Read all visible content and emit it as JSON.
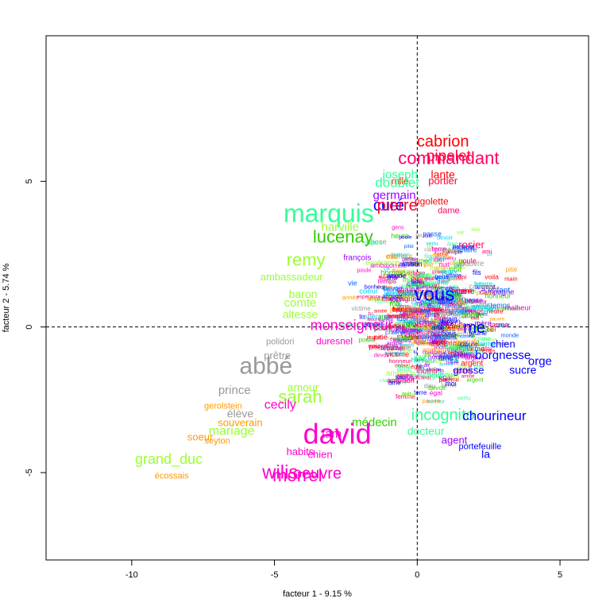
{
  "chart_data": {
    "type": "scatter",
    "title": "",
    "xlabel": "facteur  1  - 9.15 %",
    "ylabel": "facteur  2  - 5.74 %",
    "xlim": [
      -13,
      6
    ],
    "ylim": [
      -8,
      10
    ],
    "x_ticks": [
      -10,
      -5,
      0,
      5
    ],
    "y_ticks": [
      -5,
      0,
      5
    ],
    "reference_lines": {
      "x": 0,
      "y": 0,
      "style": "dashed"
    },
    "points": [
      {
        "label": "cabrion",
        "x": 0.9,
        "y": 6.2,
        "size": 20,
        "color": "#ff0000"
      },
      {
        "label": "pipelet",
        "x": 1.1,
        "y": 5.7,
        "size": 19,
        "color": "#ff0033"
      },
      {
        "label": "commandant",
        "x": 1.1,
        "y": 5.6,
        "size": 22,
        "color": "#ff0066"
      },
      {
        "label": "joseph",
        "x": -0.6,
        "y": 5.1,
        "size": 15,
        "color": "#33ff99"
      },
      {
        "label": "mlle",
        "x": -0.6,
        "y": 4.9,
        "size": 12,
        "color": "#ff3300"
      },
      {
        "label": "lante",
        "x": 0.9,
        "y": 5.1,
        "size": 14,
        "color": "#ff0000"
      },
      {
        "label": "portier",
        "x": 0.9,
        "y": 4.9,
        "size": 13,
        "color": "#ff0033"
      },
      {
        "label": "doublet",
        "x": -0.7,
        "y": 4.8,
        "size": 17,
        "color": "#33ff99"
      },
      {
        "label": "germain",
        "x": -0.8,
        "y": 4.4,
        "size": 15,
        "color": "#9900ff"
      },
      {
        "label": "curé",
        "x": -1.0,
        "y": 4.0,
        "size": 20,
        "color": "#0000ff"
      },
      {
        "label": "pierre",
        "x": -0.7,
        "y": 4.0,
        "size": 20,
        "color": "#ff0033"
      },
      {
        "label": "rigolette",
        "x": 0.5,
        "y": 4.2,
        "size": 12,
        "color": "#ff0000"
      },
      {
        "label": "dame",
        "x": 1.1,
        "y": 3.9,
        "size": 11,
        "color": "#ff0066"
      },
      {
        "label": "marquis",
        "x": -3.1,
        "y": 3.6,
        "size": 32,
        "color": "#33ff99"
      },
      {
        "label": "harville",
        "x": -2.7,
        "y": 3.3,
        "size": 15,
        "color": "#99ff33"
      },
      {
        "label": "lucenay",
        "x": -2.6,
        "y": 2.9,
        "size": 22,
        "color": "#33cc00"
      },
      {
        "label": "rosier",
        "x": 1.9,
        "y": 2.7,
        "size": 13,
        "color": "#ff0066"
      },
      {
        "label": "remy",
        "x": -3.9,
        "y": 2.1,
        "size": 22,
        "color": "#99ff33"
      },
      {
        "label": "françois",
        "x": -2.1,
        "y": 2.3,
        "size": 10,
        "color": "#9900ff"
      },
      {
        "label": "ambassadeur",
        "x": -4.4,
        "y": 1.6,
        "size": 13,
        "color": "#99ff33"
      },
      {
        "label": "baron",
        "x": -4.0,
        "y": 1.0,
        "size": 14,
        "color": "#99ff33"
      },
      {
        "label": "comte",
        "x": -4.1,
        "y": 0.7,
        "size": 15,
        "color": "#99ff33"
      },
      {
        "label": "vous",
        "x": 0.6,
        "y": 0.9,
        "size": 24,
        "color": "#0000ff"
      },
      {
        "label": "altesse",
        "x": -4.1,
        "y": 0.3,
        "size": 14,
        "color": "#99ff33"
      },
      {
        "label": "monseigneur",
        "x": -2.3,
        "y": -0.1,
        "size": 18,
        "color": "#ff00cc"
      },
      {
        "label": "me",
        "x": 2.0,
        "y": -0.2,
        "size": 20,
        "color": "#0000ff"
      },
      {
        "label": "chien",
        "x": 3.0,
        "y": -0.7,
        "size": 13,
        "color": "#0000ff"
      },
      {
        "label": "polidori",
        "x": -4.8,
        "y": -0.6,
        "size": 11,
        "color": "#999999"
      },
      {
        "label": "duresnel",
        "x": -2.9,
        "y": -0.6,
        "size": 12,
        "color": "#ff00cc"
      },
      {
        "label": "prêtre",
        "x": -4.9,
        "y": -1.1,
        "size": 13,
        "color": "#999999"
      },
      {
        "label": "borgnesse",
        "x": 3.0,
        "y": -1.1,
        "size": 15,
        "color": "#0000ff"
      },
      {
        "label": "orge",
        "x": 4.3,
        "y": -1.3,
        "size": 15,
        "color": "#0000ff"
      },
      {
        "label": "abbé",
        "x": -5.3,
        "y": -1.6,
        "size": 30,
        "color": "#999999"
      },
      {
        "label": "grosse",
        "x": 1.8,
        "y": -1.6,
        "size": 13,
        "color": "#0000ff"
      },
      {
        "label": "sucre",
        "x": 3.7,
        "y": -1.6,
        "size": 14,
        "color": "#0000ff"
      },
      {
        "label": "amour",
        "x": -4.0,
        "y": -2.2,
        "size": 14,
        "color": "#99ff33"
      },
      {
        "label": "prince",
        "x": -6.4,
        "y": -2.3,
        "size": 15,
        "color": "#999999"
      },
      {
        "label": "sarah",
        "x": -4.1,
        "y": -2.6,
        "size": 22,
        "color": "#99ff33"
      },
      {
        "label": "gerolstein",
        "x": -6.8,
        "y": -2.8,
        "size": 11,
        "color": "#ff9900"
      },
      {
        "label": "cecily",
        "x": -4.8,
        "y": -2.8,
        "size": 16,
        "color": "#ff00cc"
      },
      {
        "label": "élève",
        "x": -6.2,
        "y": -3.1,
        "size": 14,
        "color": "#999999"
      },
      {
        "label": "incognito",
        "x": 0.9,
        "y": -3.2,
        "size": 20,
        "color": "#33ff99"
      },
      {
        "label": "chourineur",
        "x": 2.7,
        "y": -3.2,
        "size": 17,
        "color": "#0000ff"
      },
      {
        "label": "souverain",
        "x": -6.2,
        "y": -3.4,
        "size": 13,
        "color": "#ff9900"
      },
      {
        "label": "médecin",
        "x": -1.5,
        "y": -3.4,
        "size": 15,
        "color": "#33cc00"
      },
      {
        "label": "mariage",
        "x": -6.5,
        "y": -3.7,
        "size": 16,
        "color": "#99ff33"
      },
      {
        "label": "docteur",
        "x": 0.3,
        "y": -3.7,
        "size": 14,
        "color": "#33ff99"
      },
      {
        "label": "agent",
        "x": 1.3,
        "y": -4.0,
        "size": 13,
        "color": "#9900ff"
      },
      {
        "label": "tam",
        "x": -3.0,
        "y": -3.8,
        "size": 15,
        "color": "#ff00cc"
      },
      {
        "label": "david",
        "x": -2.8,
        "y": -4.0,
        "size": 36,
        "color": "#ff00cc"
      },
      {
        "label": "soeur",
        "x": -7.6,
        "y": -3.9,
        "size": 13,
        "color": "#ff9900"
      },
      {
        "label": "seyton",
        "x": -7.0,
        "y": -4.0,
        "size": 11,
        "color": "#ff9900"
      },
      {
        "label": "portefeuille",
        "x": 2.2,
        "y": -4.2,
        "size": 11,
        "color": "#0000ff"
      },
      {
        "label": "habits",
        "x": -4.1,
        "y": -4.4,
        "size": 13,
        "color": "#ff00cc"
      },
      {
        "label": "chien",
        "x": -3.4,
        "y": -4.5,
        "size": 13,
        "color": "#ff00cc"
      },
      {
        "label": "la",
        "x": 2.4,
        "y": -4.5,
        "size": 14,
        "color": "#0000ff"
      },
      {
        "label": "grand_duc",
        "x": -8.7,
        "y": -4.7,
        "size": 18,
        "color": "#99ff33"
      },
      {
        "label": "écossais",
        "x": -8.6,
        "y": -5.2,
        "size": 11,
        "color": "#ff9900"
      },
      {
        "label": "wilis",
        "x": -4.8,
        "y": -5.2,
        "size": 24,
        "color": "#ff00cc"
      },
      {
        "label": "morrel",
        "x": -4.2,
        "y": -5.3,
        "size": 22,
        "color": "#ff00cc"
      },
      {
        "label": "oeuvre",
        "x": -3.5,
        "y": -5.2,
        "size": 20,
        "color": "#ff00cc"
      }
    ],
    "background_noise": [
      "passe",
      "fleur",
      "campagne",
      "ça",
      "ma",
      "tu",
      "elle",
      "ami",
      "mort",
      "homme",
      "voila",
      "égal",
      "prison",
      "poule",
      "sac",
      "rue",
      "temple",
      "moi",
      "fils",
      "crime",
      "femme",
      "dit",
      "jeune",
      "nuit",
      "affaire",
      "maison",
      "argent",
      "pauvre",
      "vie",
      "coeur",
      "enfant",
      "père",
      "mère",
      "main",
      "tête",
      "jour",
      "heure",
      "temps",
      "malheur",
      "bonheur",
      "chose",
      "monde",
      "gens",
      "année",
      "ambition",
      "espérance",
      "chaîne",
      "victime",
      "pitié",
      "devoir",
      "amitié",
      "larme",
      "honneur",
      "vertu",
      "âme",
      "dieu",
      "ciel",
      "terre"
    ]
  }
}
